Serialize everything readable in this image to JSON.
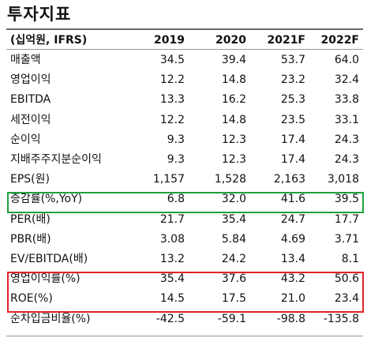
{
  "title": "투자지표",
  "header": {
    "label": "(십억원, IFRS)",
    "years": [
      "2019",
      "2020",
      "2021F",
      "2022F"
    ]
  },
  "rows": [
    {
      "label": "매출액",
      "values": [
        "34.5",
        "39.4",
        "53.7",
        "64.0"
      ]
    },
    {
      "label": "영업이익",
      "values": [
        "12.2",
        "14.8",
        "23.2",
        "32.4"
      ]
    },
    {
      "label": "EBITDA",
      "values": [
        "13.3",
        "16.2",
        "25.3",
        "33.8"
      ]
    },
    {
      "label": "세전이익",
      "values": [
        "12.2",
        "14.8",
        "23.5",
        "33.1"
      ]
    },
    {
      "label": "순이익",
      "values": [
        "9.3",
        "12.3",
        "17.4",
        "24.3"
      ]
    },
    {
      "label": "지배주주지분순이익",
      "values": [
        "9.3",
        "12.3",
        "17.4",
        "24.3"
      ]
    },
    {
      "label": "EPS(원)",
      "values": [
        "1,157",
        "1,528",
        "2,163",
        "3,018"
      ]
    },
    {
      "label": "증감률(%,YoY)",
      "values": [
        "6.8",
        "32.0",
        "41.6",
        "39.5"
      ]
    },
    {
      "label": "PER(배)",
      "values": [
        "21.7",
        "35.4",
        "24.7",
        "17.7"
      ]
    },
    {
      "label": "PBR(배)",
      "values": [
        "3.08",
        "5.84",
        "4.69",
        "3.71"
      ]
    },
    {
      "label": "EV/EBITDA(배)",
      "values": [
        "13.2",
        "24.2",
        "13.4",
        "8.1"
      ]
    },
    {
      "label": "영업이익률(%)",
      "values": [
        "35.4",
        "37.6",
        "43.2",
        "50.6"
      ]
    },
    {
      "label": "ROE(%)",
      "values": [
        "14.5",
        "17.5",
        "21.0",
        "23.4"
      ]
    },
    {
      "label": "순차입금비율(%)",
      "values": [
        "-42.5",
        "-59.1",
        "-98.8",
        "-135.8"
      ]
    }
  ],
  "highlight_colors": {
    "green": "#1fa13b",
    "red": "#e0242a"
  }
}
